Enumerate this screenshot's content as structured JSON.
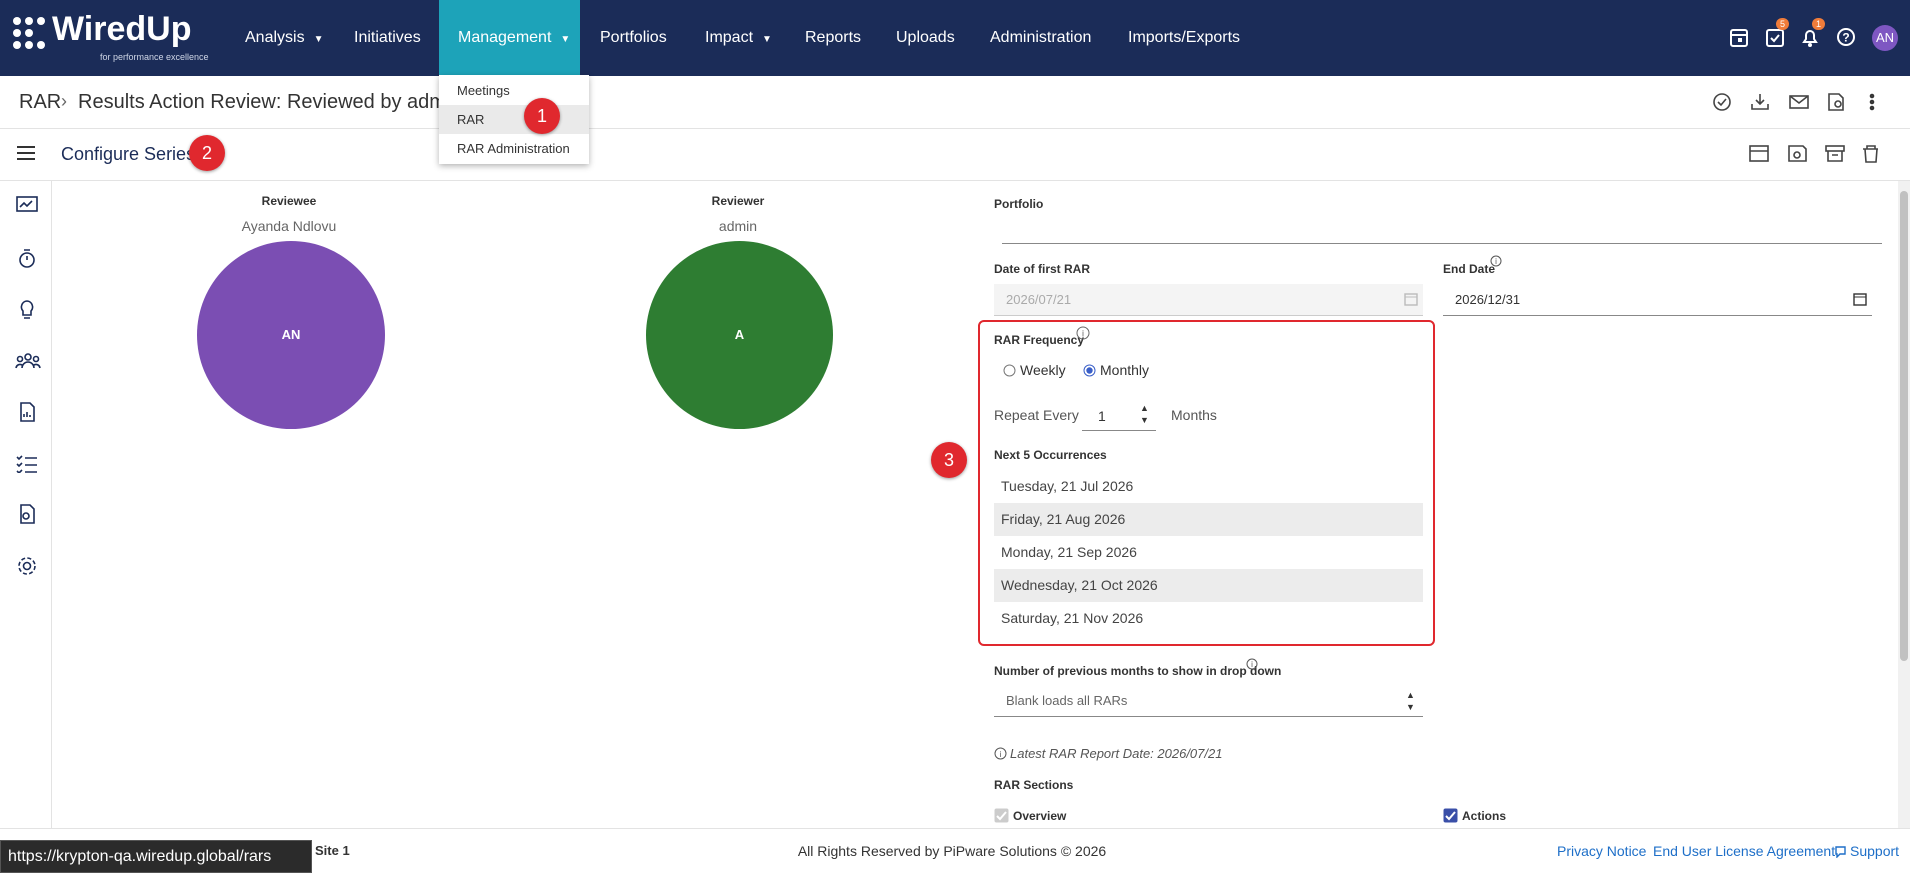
{
  "navbar": {
    "logo": "WiredUp",
    "tagline": "for performance excellence",
    "items": [
      "Analysis",
      "Initiatives",
      "Management",
      "Portfolios",
      "Impact",
      "Reports",
      "Uploads",
      "Administration",
      "Imports/Exports"
    ],
    "tasks_count": "5",
    "notifications_count": "1",
    "avatar": "AN"
  },
  "dropdown": {
    "items": [
      "Meetings",
      "RAR",
      "RAR Administration"
    ]
  },
  "breadcrumb": {
    "root": "RAR",
    "title": "Results Action Review: Reviewed by admin"
  },
  "toolbar": {
    "title": "Configure Series"
  },
  "reviewee": {
    "label": "Reviewee",
    "name": "Ayanda Ndlovu",
    "initials": "AN"
  },
  "reviewer": {
    "label": "Reviewer",
    "name": "admin",
    "initials": "A"
  },
  "form": {
    "portfolio_label": "Portfolio",
    "first_date_label": "Date of first RAR",
    "first_date": "2026/07/21",
    "end_date_label": "End Date",
    "end_date": "2026/12/31",
    "frequency_label": "RAR Frequency",
    "weekly": "Weekly",
    "monthly": "Monthly",
    "repeat_label": "Repeat Every",
    "repeat_value": "1",
    "repeat_unit": "Months",
    "occurrences_label": "Next 5 Occurrences",
    "occurrences": [
      "Tuesday, 21 Jul 2026",
      "Friday, 21 Aug 2026",
      "Monday, 21 Sep 2026",
      "Wednesday, 21 Oct 2026",
      "Saturday, 21 Nov 2026"
    ],
    "months_label": "Number of previous months to show in drop down",
    "months_placeholder": "Blank loads all RARs",
    "latest_report": "Latest RAR Report Date: 2026/07/21",
    "sections_label": "RAR Sections",
    "section_overview": "Overview",
    "section_actions": "Actions"
  },
  "annotations": [
    "1",
    "2",
    "3"
  ],
  "footer": {
    "site": "Site 1",
    "copyright": "All Rights Reserved by PiPware Solutions © 2026",
    "privacy": "Privacy Notice",
    "eula": "End User License Agreement",
    "support": "Support"
  },
  "status_url": "https://krypton-qa.wiredup.global/rars"
}
